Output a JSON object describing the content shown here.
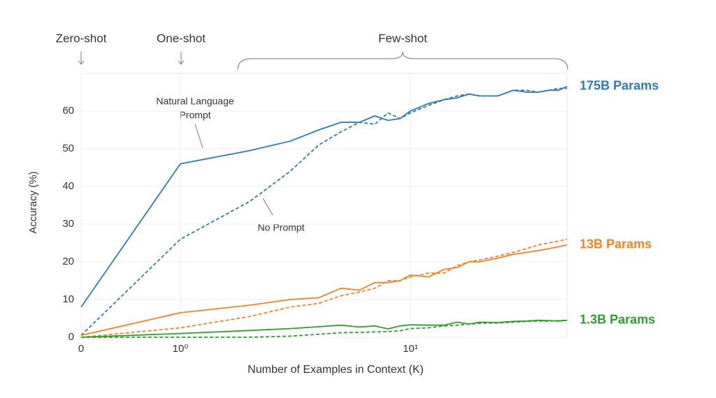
{
  "chart_data": {
    "type": "line",
    "xlabel": "Number of Examples in Context  (K)",
    "ylabel": "Accuracy (%)",
    "xscale": "symlog",
    "x": [
      0,
      1,
      2,
      3,
      4,
      5,
      6,
      7,
      8,
      9,
      10,
      12,
      14,
      16,
      18,
      20,
      24,
      28,
      32,
      36,
      40,
      44,
      48
    ],
    "xlim": [
      0,
      48
    ],
    "xticks": [
      0,
      {
        "value": 1,
        "label": "10⁰"
      },
      {
        "value": 10,
        "label": "10¹"
      }
    ],
    "ylim": [
      0,
      70
    ],
    "yticks": [
      0,
      10,
      20,
      30,
      40,
      50,
      60
    ],
    "grid": true,
    "series": [
      {
        "name": "175B Params",
        "color": "#2e7ab5",
        "values": [
          8,
          46,
          49.5,
          52,
          55,
          57,
          57,
          58.7,
          57.5,
          58,
          60,
          62,
          63,
          63.5,
          64.5,
          64,
          64,
          65.5,
          65,
          65,
          65.5,
          65.5,
          66.5
        ],
        "values_no_prompt": [
          0.5,
          26,
          36,
          44,
          51,
          54.5,
          57,
          56.5,
          59.5,
          58,
          59.5,
          61.5,
          63,
          64,
          64.5,
          64,
          64,
          65.5,
          65.5,
          65,
          65.5,
          66,
          66
        ]
      },
      {
        "name": "13B Params",
        "color": "#f5821f",
        "values": [
          0.5,
          6.5,
          8.5,
          10,
          10.5,
          13,
          12.5,
          14.5,
          14.5,
          15,
          16.5,
          16,
          18,
          18.5,
          20,
          20,
          21,
          22,
          22.5,
          23,
          23.5,
          24,
          24.5
        ],
        "values_no_prompt": [
          0,
          2.5,
          5.5,
          8,
          9,
          11,
          12,
          13,
          15,
          15,
          16,
          17,
          17,
          19,
          20,
          20.5,
          21.5,
          22.5,
          23.5,
          24.5,
          25,
          25.5,
          26
        ]
      },
      {
        "name": "1.3B Params",
        "color": "#2ca02c",
        "values": [
          0,
          1,
          1.8,
          2.3,
          2.8,
          3.2,
          2.7,
          3,
          2.2,
          3,
          3.3,
          3.2,
          3.2,
          4,
          3.5,
          4,
          3.9,
          4.2,
          4.3,
          4.5,
          4.4,
          4.3,
          4.5
        ],
        "values_no_prompt": [
          0,
          0,
          0,
          0.3,
          0.8,
          1.2,
          1.3,
          1.4,
          1.5,
          1.7,
          2.3,
          2.5,
          3,
          3.2,
          3.5,
          3.7,
          3.8,
          4,
          4.2,
          4.3,
          4.3,
          4.4,
          4.5
        ]
      }
    ],
    "annotations": {
      "shots": [
        "Zero-shot",
        "One-shot",
        "Few-shot"
      ],
      "natural_language_prompt": [
        "Natural Language",
        "Prompt"
      ],
      "no_prompt": "No Prompt"
    }
  }
}
